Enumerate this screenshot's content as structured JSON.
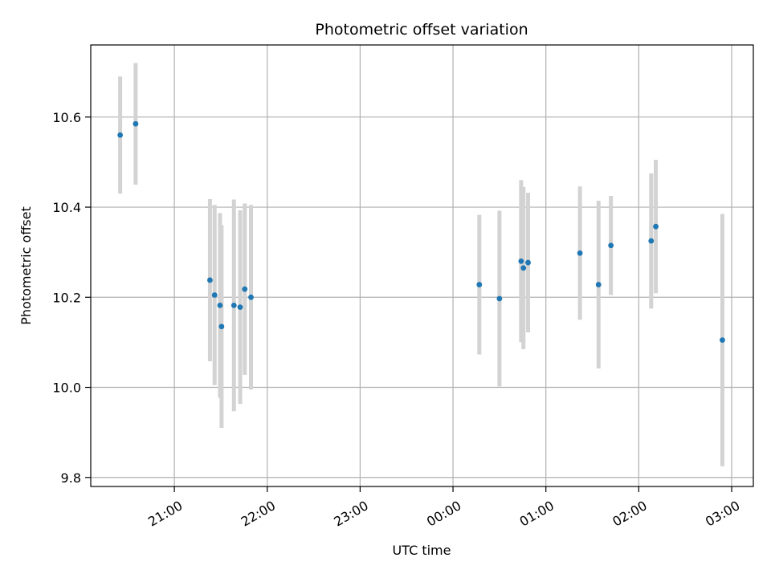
{
  "chart_data": {
    "type": "scatter",
    "title": "Photometric offset variation",
    "xlabel": "UTC time",
    "ylabel": "Photometric offset",
    "x_ticks_minutes": [
      -180,
      -120,
      -60,
      0,
      60,
      120,
      180
    ],
    "x_tick_labels": [
      "21:00",
      "22:00",
      "23:00",
      "00:00",
      "01:00",
      "02:00",
      "03:00"
    ],
    "y_ticks": [
      9.8,
      10.0,
      10.2,
      10.4,
      10.6
    ],
    "y_tick_labels": [
      "9.8",
      "10.0",
      "10.2",
      "10.4",
      "10.6"
    ],
    "xlim_minutes": [
      -234,
      194
    ],
    "ylim": [
      9.78,
      10.76
    ],
    "grid": true,
    "point_color": "#1f77b4",
    "errorbar_color": "#d3d3d3",
    "points": [
      {
        "t": -215,
        "y": 10.56,
        "err": 0.13
      },
      {
        "t": -205,
        "y": 10.585,
        "err": 0.135
      },
      {
        "t": -157,
        "y": 10.238,
        "err": 0.18
      },
      {
        "t": -154,
        "y": 10.205,
        "err": 0.2
      },
      {
        "t": -150.5,
        "y": 10.182,
        "err": 0.205
      },
      {
        "t": -149.5,
        "y": 10.135,
        "err": 0.225
      },
      {
        "t": -141.5,
        "y": 10.182,
        "err": 0.235
      },
      {
        "t": -137.5,
        "y": 10.178,
        "err": 0.215
      },
      {
        "t": -134.5,
        "y": 10.218,
        "err": 0.19
      },
      {
        "t": -130.5,
        "y": 10.2,
        "err": 0.205
      },
      {
        "t": 17,
        "y": 10.228,
        "err": 0.155
      },
      {
        "t": 30,
        "y": 10.197,
        "err": 0.195
      },
      {
        "t": 44,
        "y": 10.28,
        "err": 0.18
      },
      {
        "t": 45.5,
        "y": 10.265,
        "err": 0.18
      },
      {
        "t": 48.5,
        "y": 10.277,
        "err": 0.155
      },
      {
        "t": 82,
        "y": 10.298,
        "err": 0.148
      },
      {
        "t": 94,
        "y": 10.228,
        "err": 0.186
      },
      {
        "t": 102,
        "y": 10.315,
        "err": 0.11
      },
      {
        "t": 128,
        "y": 10.325,
        "err": 0.15
      },
      {
        "t": 131,
        "y": 10.357,
        "err": 0.148
      },
      {
        "t": 174,
        "y": 10.105,
        "err": 0.28
      }
    ]
  }
}
